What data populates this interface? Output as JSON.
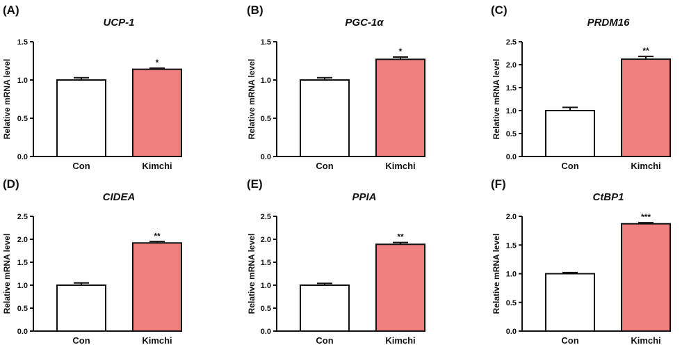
{
  "colors": {
    "con_fill": "#ffffff",
    "kimchi_fill": "#f08080",
    "stroke": "#111111"
  },
  "chart_data": [
    {
      "type": "bar",
      "panel": "(A)",
      "title": "UCP-1",
      "ylabel": "Relative mRNA level",
      "ylim": [
        0,
        1.5
      ],
      "yticks": [
        0.0,
        0.5,
        1.0,
        1.5
      ],
      "tick_labels": [
        "0.0",
        "0.5",
        "1.0",
        "1.5"
      ],
      "categories": [
        "Con",
        "Kimchi"
      ],
      "values": [
        1.0,
        1.14
      ],
      "errors": [
        0.03,
        0.015
      ],
      "significance": [
        "",
        "*"
      ]
    },
    {
      "type": "bar",
      "panel": "(B)",
      "title": "PGC-1α",
      "ylabel": "Relative mRNA level",
      "ylim": [
        0,
        1.5
      ],
      "yticks": [
        0.0,
        0.5,
        1.0,
        1.5
      ],
      "tick_labels": [
        "0.0",
        "0.5",
        "1.0",
        "1.5"
      ],
      "categories": [
        "Con",
        "Kimchi"
      ],
      "values": [
        1.0,
        1.27
      ],
      "errors": [
        0.03,
        0.03
      ],
      "significance": [
        "",
        "*"
      ]
    },
    {
      "type": "bar",
      "panel": "(C)",
      "title": "PRDM16",
      "ylabel": "Relative mRNA level",
      "ylim": [
        0,
        2.5
      ],
      "yticks": [
        0.0,
        0.5,
        1.0,
        1.5,
        2.0,
        2.5
      ],
      "tick_labels": [
        "0.0",
        "0.5",
        "1.0",
        "1.5",
        "2.0",
        "2.5"
      ],
      "categories": [
        "Con",
        "Kimchi"
      ],
      "values": [
        1.0,
        2.12
      ],
      "errors": [
        0.07,
        0.06
      ],
      "significance": [
        "",
        "**"
      ]
    },
    {
      "type": "bar",
      "panel": "(D)",
      "title": "CIDEA",
      "ylabel": "Relative mRNA level",
      "ylim": [
        0,
        2.5
      ],
      "yticks": [
        0.0,
        0.5,
        1.0,
        1.5,
        2.0,
        2.5
      ],
      "tick_labels": [
        "0.0",
        "0.5",
        "1.0",
        "1.5",
        "2.0",
        "2.5"
      ],
      "categories": [
        "Con",
        "Kimchi"
      ],
      "values": [
        1.0,
        1.92
      ],
      "errors": [
        0.05,
        0.03
      ],
      "significance": [
        "",
        "**"
      ]
    },
    {
      "type": "bar",
      "panel": "(E)",
      "title": "PPIA",
      "ylabel": "Relative mRNA level",
      "ylim": [
        0,
        2.5
      ],
      "yticks": [
        0.0,
        0.5,
        1.0,
        1.5,
        2.0,
        2.5
      ],
      "tick_labels": [
        "0.0",
        "0.5",
        "1.0",
        "1.5",
        "2.0",
        "2.5"
      ],
      "categories": [
        "Con",
        "Kimchi"
      ],
      "values": [
        1.0,
        1.89
      ],
      "errors": [
        0.04,
        0.04
      ],
      "significance": [
        "",
        "**"
      ]
    },
    {
      "type": "bar",
      "panel": "(F)",
      "title": "CtBP1",
      "ylabel": "Relative mRNA level",
      "ylim": [
        0,
        2.0
      ],
      "yticks": [
        0.0,
        0.5,
        1.0,
        1.5,
        2.0
      ],
      "tick_labels": [
        "0.0",
        "0.5",
        "1.0",
        "1.5",
        "2.0"
      ],
      "categories": [
        "Con",
        "Kimchi"
      ],
      "values": [
        1.0,
        1.87
      ],
      "errors": [
        0.02,
        0.02
      ],
      "significance": [
        "",
        "***"
      ]
    }
  ]
}
